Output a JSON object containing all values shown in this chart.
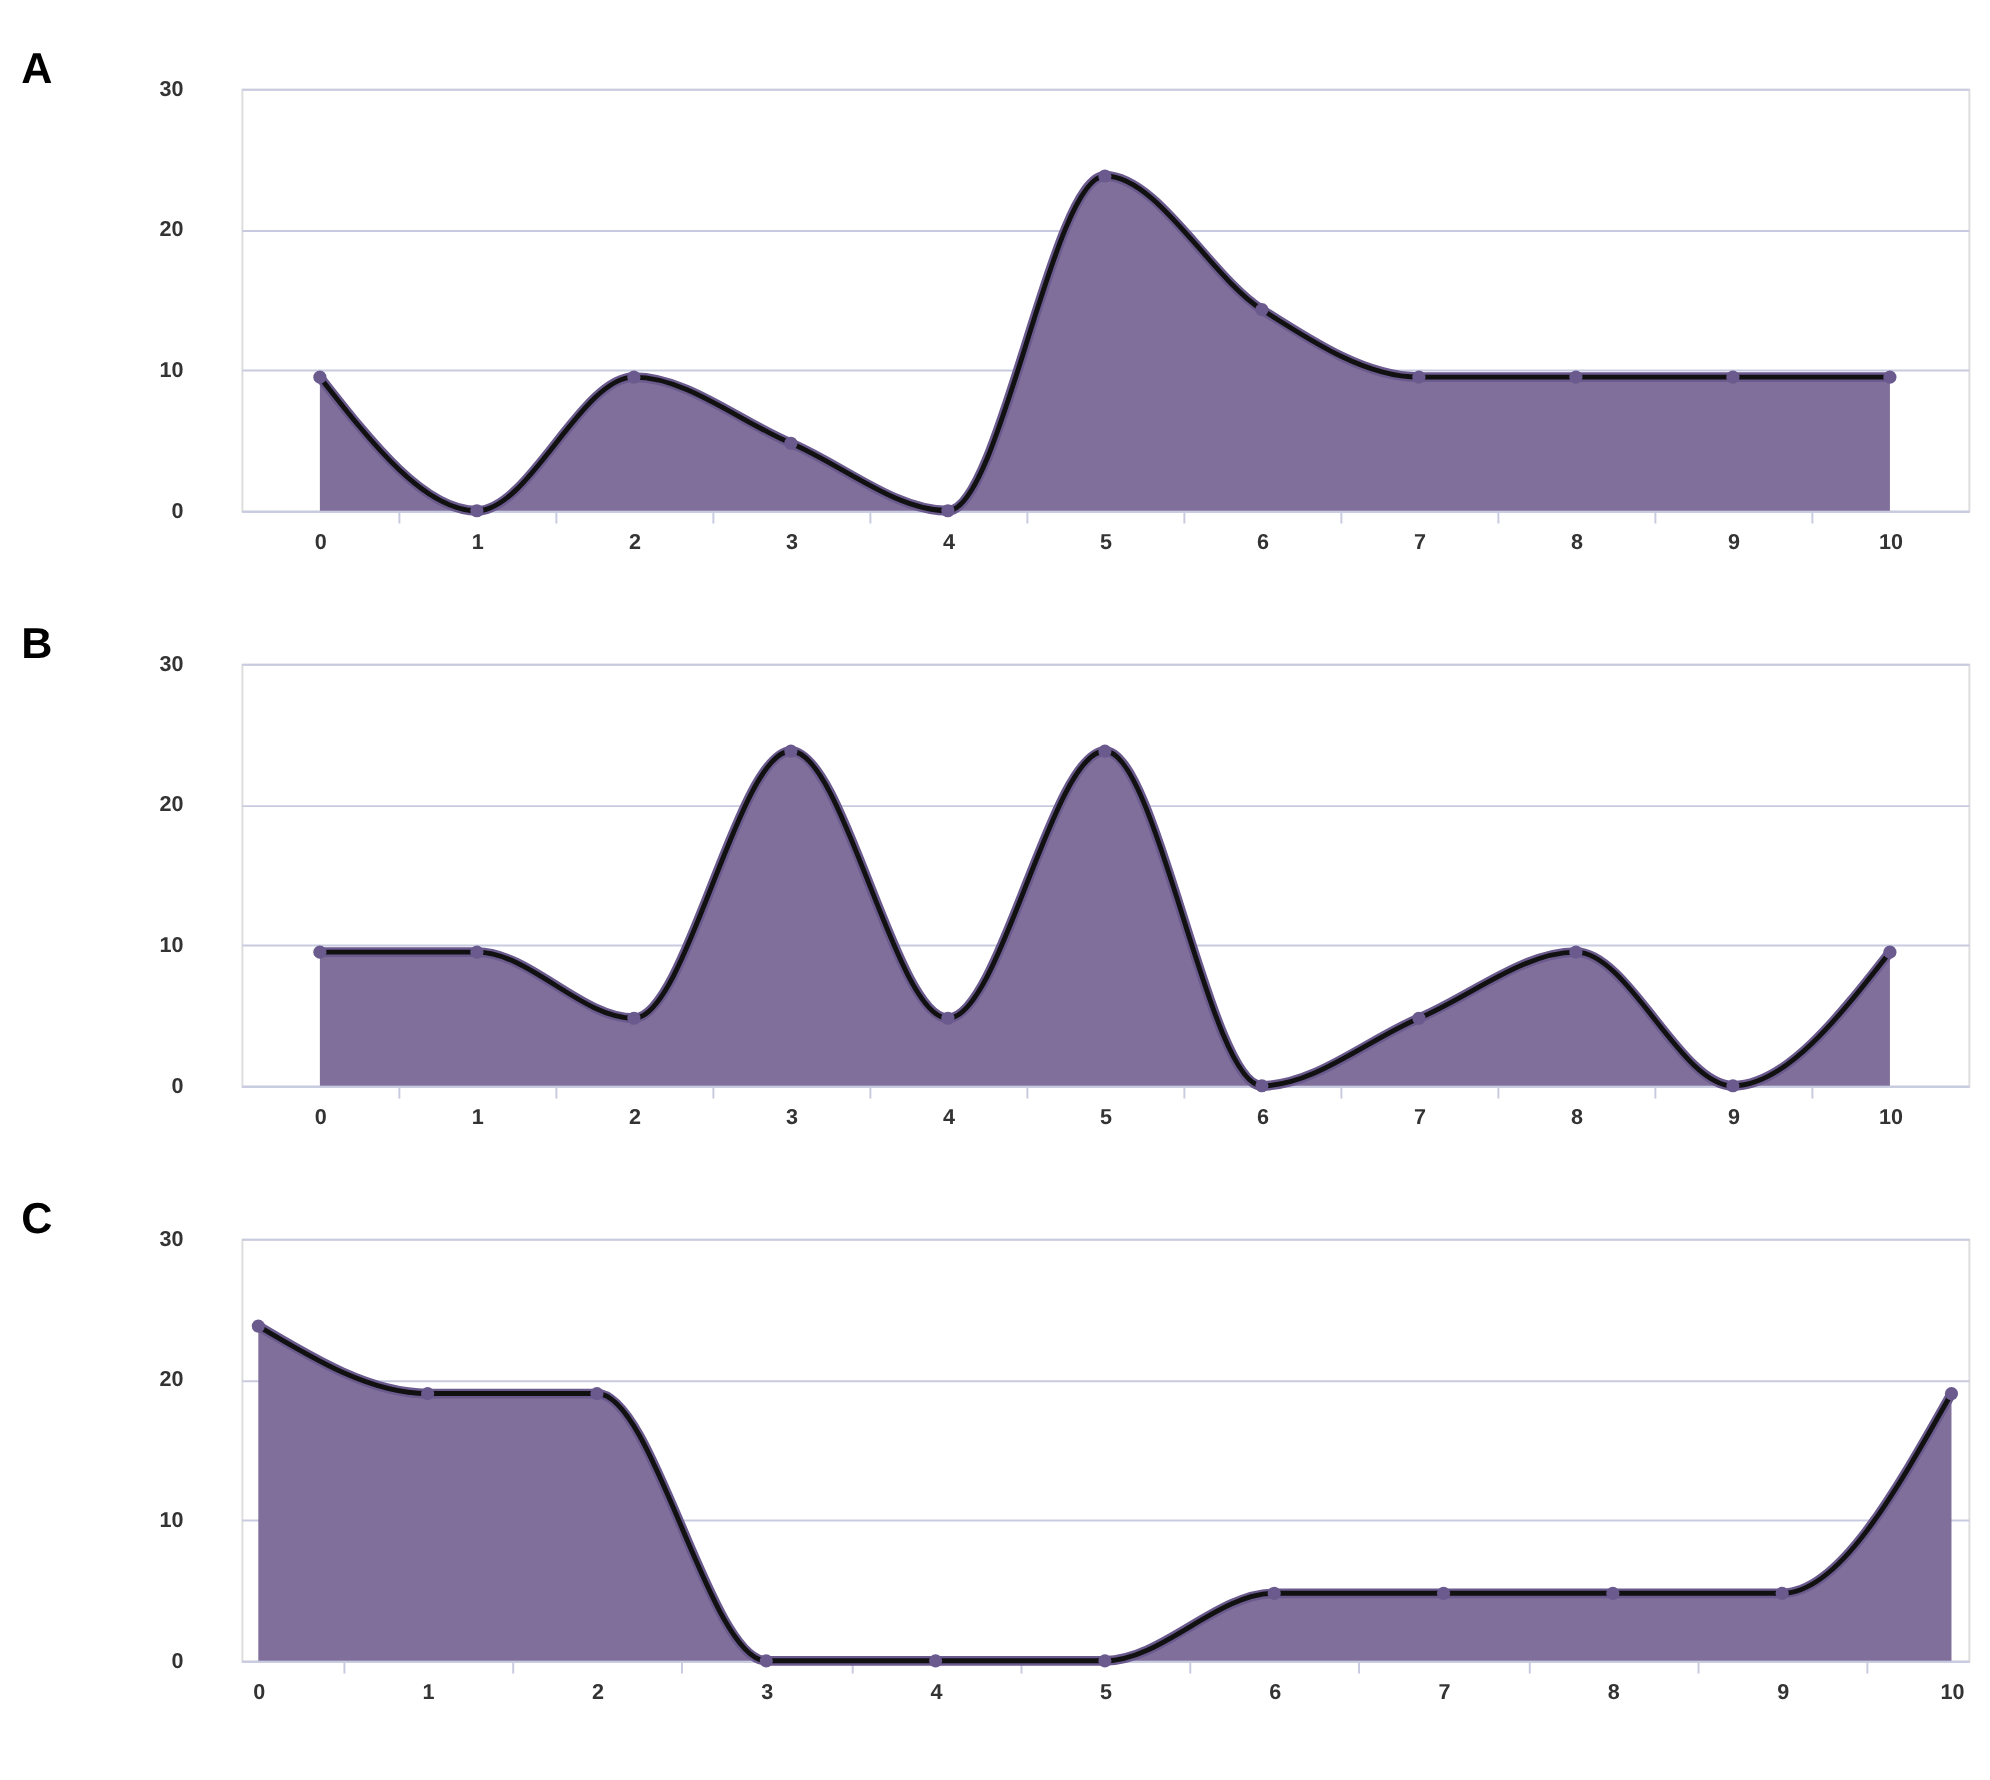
{
  "chart_data": [
    {
      "type": "area",
      "title": "A",
      "x": [
        0,
        1,
        2,
        3,
        4,
        5,
        6,
        7,
        8,
        9,
        10
      ],
      "series": [
        {
          "color": "#7f6f9a",
          "values": [
            9.5,
            0,
            9.5,
            4.8,
            0,
            23.8,
            14.3,
            9.5,
            9.5,
            9.5,
            9.5
          ]
        }
      ],
      "xlim": [
        -0.5,
        10.5
      ],
      "xticks": [
        0,
        {
          "value": 0.5,
          "label": null
        },
        1,
        {
          "value": 1.5,
          "label": null
        },
        2,
        {
          "value": 2.5,
          "label": null
        },
        3,
        {
          "value": 3.5,
          "label": null
        },
        4,
        {
          "value": 4.5,
          "label": null
        },
        5,
        {
          "value": 5.5,
          "label": null
        },
        6,
        {
          "value": 6.5,
          "label": null
        },
        7,
        {
          "value": 7.5,
          "label": null
        },
        8,
        {
          "value": 8.5,
          "label": null
        },
        9,
        {
          "value": 9.5,
          "label": null
        },
        10
      ],
      "ylim": [
        0,
        30
      ],
      "yticks": [
        0,
        10,
        20,
        30
      ],
      "grid": "y",
      "marker": "circle",
      "line_style": "solid"
    },
    {
      "type": "area",
      "title": "B",
      "x": [
        0,
        1,
        2,
        3,
        4,
        5,
        6,
        7,
        8,
        9,
        10
      ],
      "series": [
        {
          "color": "#7f6f9a",
          "values": [
            9.5,
            9.5,
            4.8,
            23.8,
            4.8,
            23.8,
            0,
            4.8,
            9.5,
            0,
            9.5
          ]
        }
      ],
      "xlim": [
        -0.5,
        10.5
      ],
      "xticks": [
        0,
        {
          "value": 0.5,
          "label": null
        },
        1,
        {
          "value": 1.5,
          "label": null
        },
        2,
        {
          "value": 2.5,
          "label": null
        },
        3,
        {
          "value": 3.5,
          "label": null
        },
        4,
        {
          "value": 4.5,
          "label": null
        },
        5,
        {
          "value": 5.5,
          "label": null
        },
        6,
        {
          "value": 6.5,
          "label": null
        },
        7,
        {
          "value": 7.5,
          "label": null
        },
        8,
        {
          "value": 8.5,
          "label": null
        },
        9,
        {
          "value": 9.5,
          "label": null
        },
        10
      ],
      "ylim": [
        0,
        30
      ],
      "yticks": [
        0,
        10,
        20,
        30
      ],
      "grid": "y",
      "marker": "circle",
      "line_style": "solid"
    },
    {
      "type": "area",
      "title": "C",
      "x": [
        0,
        1,
        2,
        3,
        4,
        5,
        6,
        7,
        8,
        9,
        10
      ],
      "series": [
        {
          "color": "#7f6f9a",
          "values": [
            23.8,
            19,
            19,
            0,
            0,
            0,
            4.8,
            4.8,
            4.8,
            4.8,
            19
          ]
        }
      ],
      "xlim": [
        -0.1,
        10.1
      ],
      "xticks": [
        0,
        {
          "value": 0.5,
          "label": null
        },
        1,
        {
          "value": 1.5,
          "label": null
        },
        2,
        {
          "value": 2.5,
          "label": null
        },
        3,
        {
          "value": 3.5,
          "label": null
        },
        4,
        {
          "value": 4.5,
          "label": null
        },
        5,
        {
          "value": 5.5,
          "label": null
        },
        6,
        {
          "value": 6.5,
          "label": null
        },
        7,
        {
          "value": 7.5,
          "label": null
        },
        8,
        {
          "value": 8.5,
          "label": null
        },
        9,
        {
          "value": 9.5,
          "label": null
        },
        10
      ],
      "ylim": [
        0,
        30
      ],
      "yticks": [
        0,
        10,
        20,
        30
      ],
      "grid": "y",
      "marker": "circle",
      "line_style": "solid"
    }
  ]
}
